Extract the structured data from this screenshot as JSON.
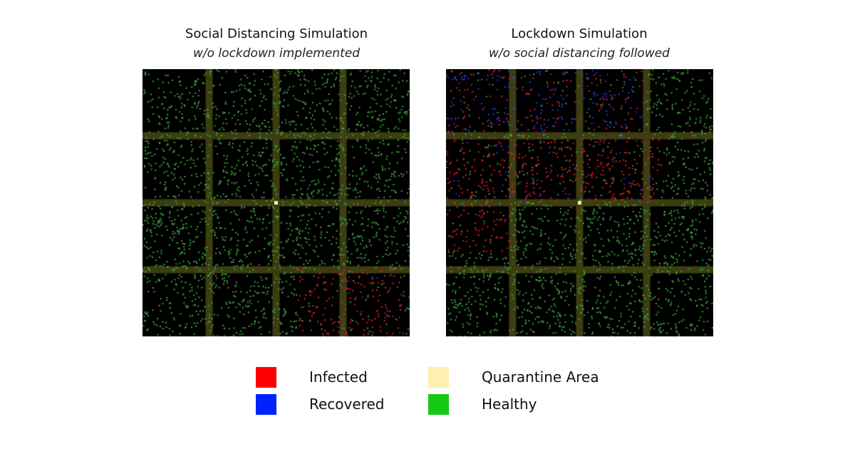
{
  "panels": [
    {
      "title": "Social Distancing Simulation",
      "subtitle": "w/o lockdown implemented"
    },
    {
      "title": "Lockdown Simulation",
      "subtitle": "w/o social distancing followed"
    }
  ],
  "legend": [
    {
      "label": "Infected",
      "color": "#ff0000"
    },
    {
      "label": "Recovered",
      "color": "#0022ff"
    },
    {
      "label": "Quarantine Area",
      "color": "#fff0b0"
    },
    {
      "label": "Healthy",
      "color": "#14c814"
    }
  ],
  "colors": {
    "background": "#000000",
    "road": "#3d3d12",
    "healthy_dot": "#3ea53e",
    "infected_dot": "#e02222",
    "recovered_dot": "#2a3ad8",
    "quarantine_dot": "#fff6a0"
  }
}
